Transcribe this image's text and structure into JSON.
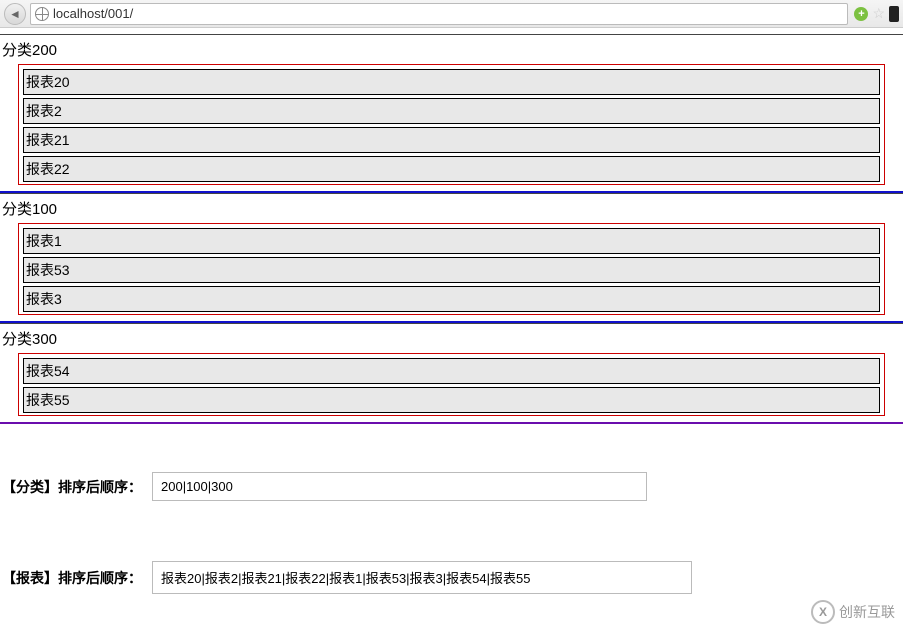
{
  "browser": {
    "url": "localhost/001/"
  },
  "categories": [
    {
      "label": "分类200",
      "border_color": "#1010cc",
      "items": [
        "报表20",
        "报表2",
        "报表21",
        "报表22"
      ]
    },
    {
      "label": "分类100",
      "border_color": "#1010cc",
      "items": [
        "报表1",
        "报表53",
        "报表3"
      ]
    },
    {
      "label": "分类300",
      "border_color": "#6a0dad",
      "items": [
        "报表54",
        "报表55"
      ]
    }
  ],
  "results": {
    "category_order_label": "【分类】排序后顺序：",
    "category_order_value": "200|100|300",
    "report_order_label": "【报表】排序后顺序：",
    "report_order_value": "报表20|报表2|报表21|报表22|报表1|报表53|报表3|报表54|报表55"
  },
  "watermark": {
    "logo": "X",
    "text": "创新互联"
  },
  "styling": {
    "item_bg": "#e8e8e8",
    "item_border": "#000000",
    "items_box_border": "#cc0000",
    "category_top_border": "#444444"
  }
}
